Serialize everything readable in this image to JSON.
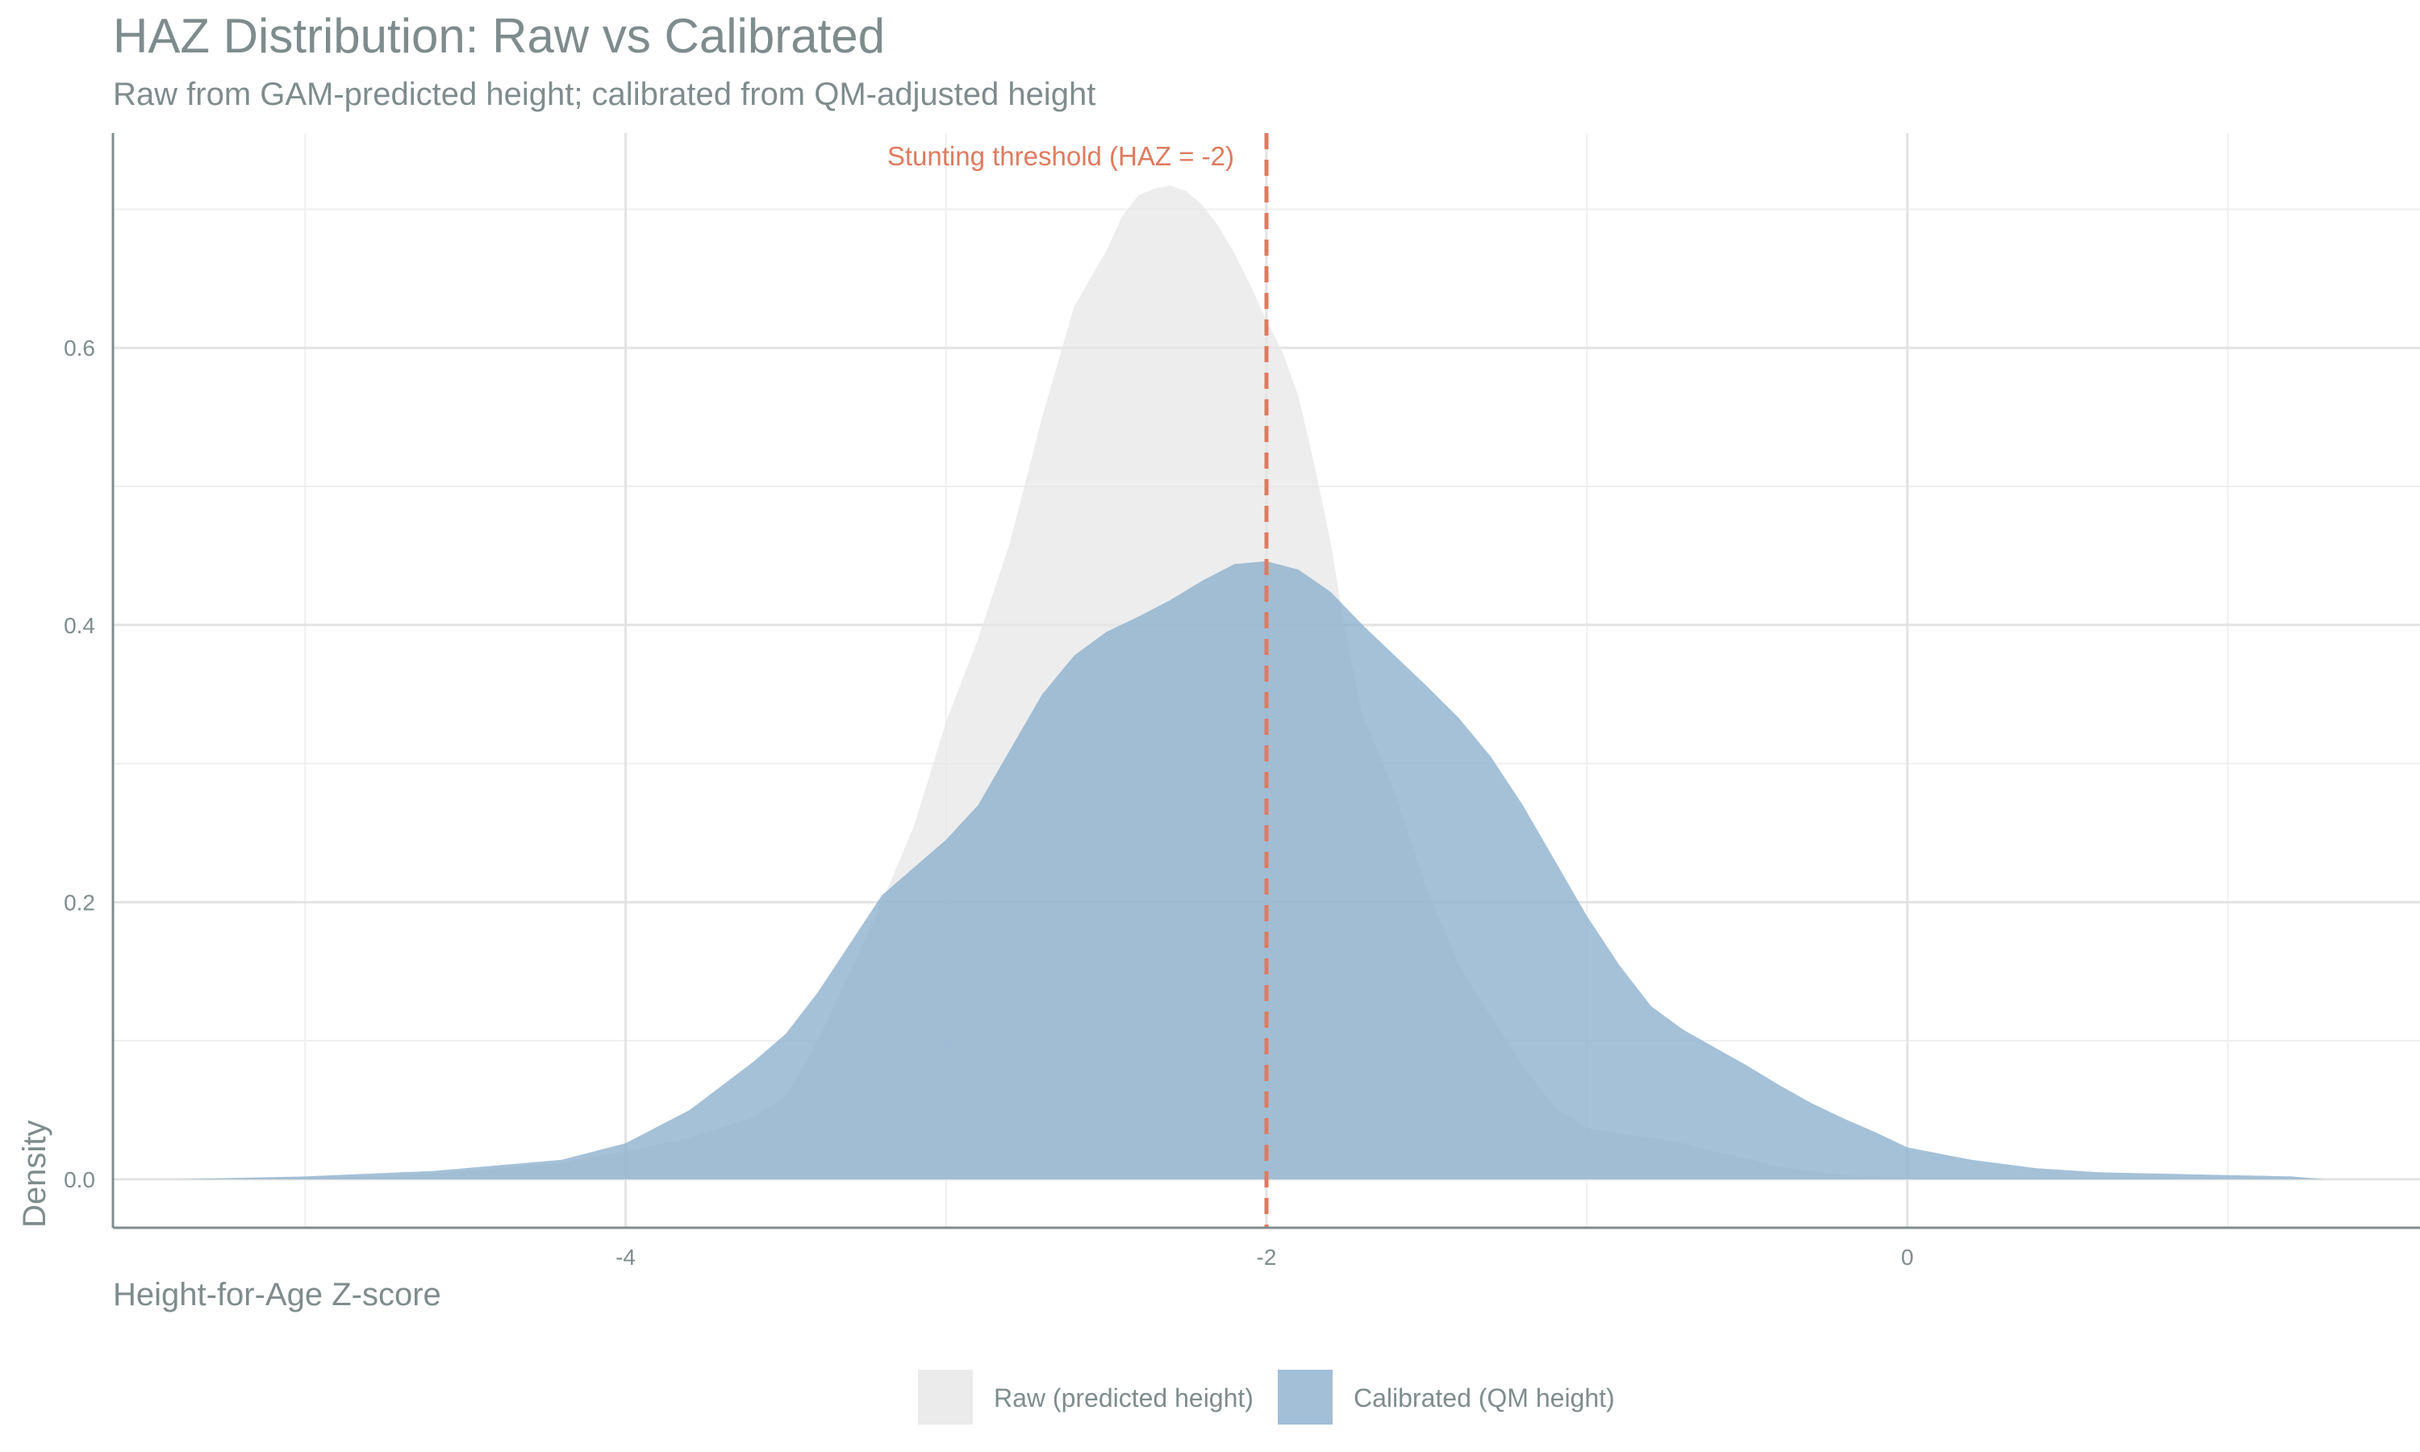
{
  "chart_data": {
    "type": "area",
    "title": "HAZ Distribution: Raw vs Calibrated",
    "subtitle": "Raw from GAM-predicted height; calibrated from QM-adjusted height",
    "xlabel": "Height-for-Age Z-score",
    "ylabel": "Density",
    "xlim": [
      -5.6,
      1.6
    ],
    "ylim": [
      -0.035,
      0.755
    ],
    "x_ticks": [
      -4,
      -2,
      0
    ],
    "x_minor_ticks": [
      -5,
      -3,
      -1,
      1
    ],
    "y_ticks": [
      0.0,
      0.2,
      0.4,
      0.6
    ],
    "y_minor_ticks": [
      0.1,
      0.3,
      0.5,
      0.7
    ],
    "x_tick_labels": [
      "-4",
      "-2",
      "0"
    ],
    "y_tick_labels": [
      "0.0",
      "0.2",
      "0.4",
      "0.6"
    ],
    "grid": true,
    "legend_position": "bottom",
    "series": [
      {
        "name": "Raw (predicted height)",
        "color": "#e6e6e6",
        "opacity": 0.72,
        "x": [
          -5.15,
          -5.0,
          -4.8,
          -4.6,
          -4.4,
          -4.2,
          -4.0,
          -3.8,
          -3.6,
          -3.5,
          -3.4,
          -3.3,
          -3.2,
          -3.1,
          -3.0,
          -2.9,
          -2.8,
          -2.7,
          -2.6,
          -2.5,
          -2.45,
          -2.4,
          -2.35,
          -2.3,
          -2.25,
          -2.2,
          -2.15,
          -2.1,
          -2.05,
          -2.0,
          -1.95,
          -1.9,
          -1.85,
          -1.8,
          -1.75,
          -1.7,
          -1.6,
          -1.5,
          -1.4,
          -1.3,
          -1.2,
          -1.1,
          -1.0,
          -0.9,
          -0.8,
          -0.7,
          -0.6,
          -0.5,
          -0.4,
          -0.3,
          -0.2,
          -0.1,
          0.0,
          0.1
        ],
        "y": [
          0.0,
          0.001,
          0.002,
          0.004,
          0.008,
          0.012,
          0.02,
          0.03,
          0.045,
          0.06,
          0.1,
          0.15,
          0.2,
          0.255,
          0.33,
          0.39,
          0.46,
          0.55,
          0.63,
          0.67,
          0.695,
          0.71,
          0.715,
          0.717,
          0.713,
          0.703,
          0.688,
          0.668,
          0.645,
          0.62,
          0.597,
          0.565,
          0.515,
          0.46,
          0.39,
          0.335,
          0.28,
          0.21,
          0.155,
          0.118,
          0.082,
          0.052,
          0.037,
          0.033,
          0.03,
          0.026,
          0.02,
          0.015,
          0.009,
          0.006,
          0.003,
          0.002,
          0.001,
          0.0
        ]
      },
      {
        "name": "Calibrated (QM height)",
        "color": "#8bafcd",
        "opacity": 0.78,
        "x": [
          -5.4,
          -5.0,
          -4.6,
          -4.2,
          -4.0,
          -3.8,
          -3.6,
          -3.5,
          -3.4,
          -3.3,
          -3.2,
          -3.0,
          -2.9,
          -2.8,
          -2.7,
          -2.6,
          -2.5,
          -2.4,
          -2.3,
          -2.2,
          -2.1,
          -2.0,
          -1.9,
          -1.8,
          -1.7,
          -1.6,
          -1.5,
          -1.4,
          -1.3,
          -1.2,
          -1.1,
          -1.0,
          -0.9,
          -0.8,
          -0.7,
          -0.6,
          -0.5,
          -0.4,
          -0.3,
          -0.2,
          -0.1,
          0.0,
          0.2,
          0.4,
          0.6,
          0.8,
          1.0,
          1.2,
          1.3
        ],
        "y": [
          0.0,
          0.002,
          0.006,
          0.014,
          0.026,
          0.05,
          0.085,
          0.105,
          0.135,
          0.17,
          0.205,
          0.245,
          0.27,
          0.31,
          0.35,
          0.378,
          0.395,
          0.406,
          0.418,
          0.432,
          0.444,
          0.446,
          0.44,
          0.424,
          0.4,
          0.378,
          0.356,
          0.333,
          0.305,
          0.27,
          0.23,
          0.19,
          0.155,
          0.125,
          0.108,
          0.095,
          0.082,
          0.068,
          0.055,
          0.044,
          0.034,
          0.023,
          0.014,
          0.008,
          0.005,
          0.004,
          0.003,
          0.002,
          0.0
        ]
      }
    ],
    "annotations": [
      {
        "type": "vline",
        "x": -2,
        "color": "#e07a5f",
        "style": "dashed",
        "label": "Stunting threshold (HAZ = -2)"
      }
    ]
  }
}
